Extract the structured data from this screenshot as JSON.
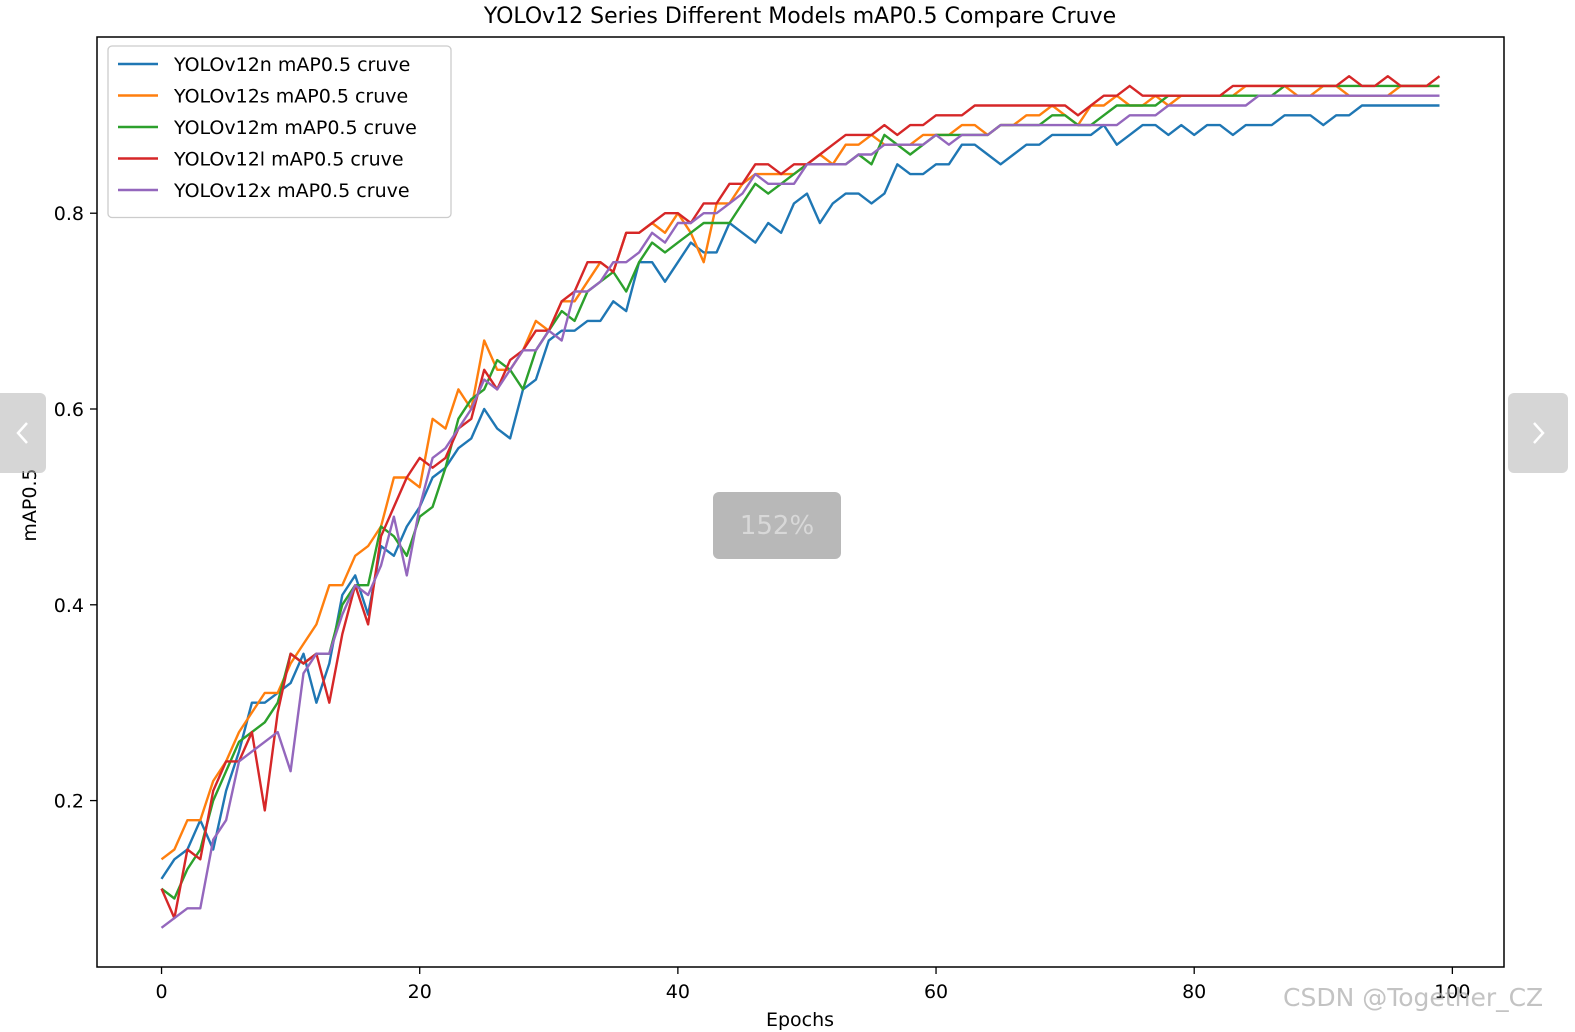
{
  "chart_data": {
    "type": "line",
    "title": "YOLOv12 Series Different Models mAP0.5 Compare Cruve",
    "xlabel": "Epochs",
    "ylabel": "mAP0.5",
    "xlim": [
      -5,
      104
    ],
    "ylim": [
      0.03,
      0.98
    ],
    "xticks": [
      0,
      20,
      40,
      60,
      80,
      100
    ],
    "yticks": [
      0.2,
      0.4,
      0.6,
      0.8
    ],
    "grid": false,
    "legend_position": "top-left",
    "x": [
      0,
      1,
      2,
      3,
      4,
      5,
      6,
      7,
      8,
      9,
      10,
      11,
      12,
      13,
      14,
      15,
      16,
      17,
      18,
      19,
      20,
      21,
      22,
      23,
      24,
      25,
      26,
      27,
      28,
      29,
      30,
      31,
      32,
      33,
      34,
      35,
      36,
      37,
      38,
      39,
      40,
      41,
      42,
      43,
      44,
      45,
      46,
      47,
      48,
      49,
      50,
      51,
      52,
      53,
      54,
      55,
      56,
      57,
      58,
      59,
      60,
      61,
      62,
      63,
      64,
      65,
      66,
      67,
      68,
      69,
      70,
      71,
      72,
      73,
      74,
      75,
      76,
      77,
      78,
      79,
      80,
      81,
      82,
      83,
      84,
      85,
      86,
      87,
      88,
      89,
      90,
      91,
      92,
      93,
      94,
      95,
      96,
      97,
      98,
      99
    ],
    "series": [
      {
        "name": "YOLOv12n mAP0.5 cruve",
        "color": "#1f77b4",
        "values": [
          0.12,
          0.14,
          0.15,
          0.18,
          0.15,
          0.21,
          0.25,
          0.3,
          0.3,
          0.31,
          0.32,
          0.35,
          0.3,
          0.34,
          0.41,
          0.43,
          0.39,
          0.46,
          0.45,
          0.48,
          0.5,
          0.53,
          0.54,
          0.56,
          0.57,
          0.6,
          0.58,
          0.57,
          0.62,
          0.63,
          0.67,
          0.68,
          0.68,
          0.69,
          0.69,
          0.71,
          0.7,
          0.75,
          0.75,
          0.73,
          0.75,
          0.77,
          0.76,
          0.76,
          0.79,
          0.78,
          0.77,
          0.79,
          0.78,
          0.81,
          0.82,
          0.79,
          0.81,
          0.82,
          0.82,
          0.81,
          0.82,
          0.85,
          0.84,
          0.84,
          0.85,
          0.85,
          0.87,
          0.87,
          0.86,
          0.85,
          0.86,
          0.87,
          0.87,
          0.88,
          0.88,
          0.88,
          0.88,
          0.89,
          0.87,
          0.88,
          0.89,
          0.89,
          0.88,
          0.89,
          0.88,
          0.89,
          0.89,
          0.88,
          0.89,
          0.89,
          0.89,
          0.9,
          0.9,
          0.9,
          0.89,
          0.9,
          0.9,
          0.91,
          0.91,
          0.91,
          0.91,
          0.91,
          0.91,
          0.91
        ]
      },
      {
        "name": "YOLOv12s mAP0.5 cruve",
        "color": "#ff7f0e",
        "values": [
          0.14,
          0.15,
          0.18,
          0.18,
          0.22,
          0.24,
          0.27,
          0.29,
          0.31,
          0.31,
          0.34,
          0.36,
          0.38,
          0.42,
          0.42,
          0.45,
          0.46,
          0.48,
          0.53,
          0.53,
          0.52,
          0.59,
          0.58,
          0.62,
          0.6,
          0.67,
          0.64,
          0.64,
          0.66,
          0.69,
          0.68,
          0.71,
          0.71,
          0.73,
          0.75,
          0.74,
          0.78,
          0.78,
          0.79,
          0.78,
          0.8,
          0.78,
          0.75,
          0.81,
          0.81,
          0.83,
          0.84,
          0.84,
          0.84,
          0.84,
          0.85,
          0.86,
          0.85,
          0.87,
          0.87,
          0.88,
          0.87,
          0.87,
          0.87,
          0.88,
          0.88,
          0.88,
          0.89,
          0.89,
          0.88,
          0.89,
          0.89,
          0.9,
          0.9,
          0.91,
          0.9,
          0.89,
          0.91,
          0.91,
          0.92,
          0.91,
          0.91,
          0.92,
          0.91,
          0.92,
          0.92,
          0.92,
          0.92,
          0.92,
          0.93,
          0.93,
          0.93,
          0.93,
          0.92,
          0.92,
          0.93,
          0.93,
          0.92,
          0.92,
          0.92,
          0.92,
          0.93,
          0.93,
          0.93,
          0.93
        ]
      },
      {
        "name": "YOLOv12m mAP0.5 cruve",
        "color": "#2ca02c",
        "values": [
          0.11,
          0.1,
          0.13,
          0.15,
          0.2,
          0.23,
          0.26,
          0.27,
          0.28,
          0.3,
          0.35,
          0.34,
          0.35,
          0.35,
          0.4,
          0.42,
          0.42,
          0.48,
          0.47,
          0.45,
          0.49,
          0.5,
          0.54,
          0.59,
          0.61,
          0.62,
          0.65,
          0.64,
          0.62,
          0.66,
          0.68,
          0.7,
          0.69,
          0.72,
          0.73,
          0.74,
          0.72,
          0.75,
          0.77,
          0.76,
          0.77,
          0.78,
          0.79,
          0.79,
          0.79,
          0.81,
          0.83,
          0.82,
          0.83,
          0.84,
          0.85,
          0.85,
          0.85,
          0.85,
          0.86,
          0.85,
          0.88,
          0.87,
          0.86,
          0.87,
          0.88,
          0.88,
          0.88,
          0.88,
          0.88,
          0.89,
          0.89,
          0.89,
          0.89,
          0.9,
          0.9,
          0.89,
          0.89,
          0.9,
          0.91,
          0.91,
          0.91,
          0.91,
          0.92,
          0.92,
          0.92,
          0.92,
          0.92,
          0.92,
          0.92,
          0.92,
          0.92,
          0.93,
          0.93,
          0.93,
          0.93,
          0.93,
          0.93,
          0.93,
          0.93,
          0.93,
          0.93,
          0.93,
          0.93,
          0.93
        ]
      },
      {
        "name": "YOLOv12l mAP0.5 cruve",
        "color": "#d62728",
        "values": [
          0.11,
          0.08,
          0.15,
          0.14,
          0.21,
          0.24,
          0.24,
          0.27,
          0.19,
          0.29,
          0.35,
          0.34,
          0.35,
          0.3,
          0.37,
          0.42,
          0.38,
          0.47,
          0.5,
          0.53,
          0.55,
          0.54,
          0.55,
          0.58,
          0.59,
          0.64,
          0.62,
          0.65,
          0.66,
          0.68,
          0.68,
          0.71,
          0.72,
          0.75,
          0.75,
          0.74,
          0.78,
          0.78,
          0.79,
          0.8,
          0.8,
          0.79,
          0.81,
          0.81,
          0.83,
          0.83,
          0.85,
          0.85,
          0.84,
          0.85,
          0.85,
          0.86,
          0.87,
          0.88,
          0.88,
          0.88,
          0.89,
          0.88,
          0.89,
          0.89,
          0.9,
          0.9,
          0.9,
          0.91,
          0.91,
          0.91,
          0.91,
          0.91,
          0.91,
          0.91,
          0.91,
          0.9,
          0.91,
          0.92,
          0.92,
          0.93,
          0.92,
          0.92,
          0.92,
          0.92,
          0.92,
          0.92,
          0.92,
          0.93,
          0.93,
          0.93,
          0.93,
          0.93,
          0.93,
          0.93,
          0.93,
          0.93,
          0.94,
          0.93,
          0.93,
          0.94,
          0.93,
          0.93,
          0.93,
          0.94
        ]
      },
      {
        "name": "YOLOv12x mAP0.5 cruve",
        "color": "#9467bd",
        "values": [
          0.07,
          0.08,
          0.09,
          0.09,
          0.16,
          0.18,
          0.24,
          0.25,
          0.26,
          0.27,
          0.23,
          0.33,
          0.35,
          0.35,
          0.39,
          0.42,
          0.41,
          0.44,
          0.49,
          0.43,
          0.5,
          0.55,
          0.56,
          0.58,
          0.6,
          0.63,
          0.62,
          0.64,
          0.66,
          0.66,
          0.68,
          0.67,
          0.72,
          0.72,
          0.73,
          0.75,
          0.75,
          0.76,
          0.78,
          0.77,
          0.79,
          0.79,
          0.8,
          0.8,
          0.81,
          0.82,
          0.84,
          0.83,
          0.83,
          0.83,
          0.85,
          0.85,
          0.85,
          0.85,
          0.86,
          0.86,
          0.87,
          0.87,
          0.87,
          0.87,
          0.88,
          0.87,
          0.88,
          0.88,
          0.88,
          0.89,
          0.89,
          0.89,
          0.89,
          0.89,
          0.89,
          0.89,
          0.89,
          0.89,
          0.89,
          0.9,
          0.9,
          0.9,
          0.91,
          0.91,
          0.91,
          0.91,
          0.91,
          0.91,
          0.91,
          0.92,
          0.92,
          0.92,
          0.92,
          0.92,
          0.92,
          0.92,
          0.92,
          0.92,
          0.92,
          0.92,
          0.92,
          0.92,
          0.92,
          0.92
        ]
      }
    ]
  },
  "viewer": {
    "zoom_label": "152%",
    "prev_icon": "chevron-left-icon",
    "next_icon": "chevron-right-icon",
    "watermark": "CSDN @Together_CZ"
  }
}
